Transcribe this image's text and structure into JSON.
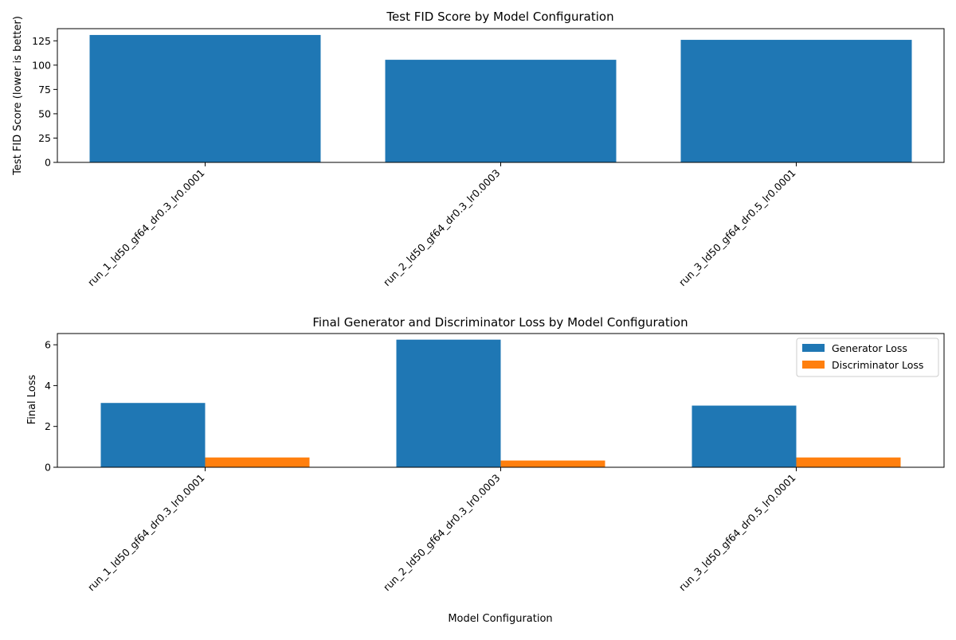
{
  "chart_data": [
    {
      "type": "bar",
      "title": "Test FID Score by Model Configuration",
      "xlabel": "",
      "ylabel": "Test FID Score (lower is better)",
      "categories": [
        "run_1_ld50_gf64_dr0.3_lr0.0001",
        "run_2_ld50_gf64_dr0.3_lr0.0003",
        "run_3_ld50_gf64_dr0.5_lr0.0001"
      ],
      "series": [
        {
          "values": [
            131.0,
            105.5,
            126.0
          ],
          "color": "#1f77b4"
        }
      ],
      "ylim": [
        0,
        137.5
      ],
      "yticks": [
        "0",
        "25",
        "50",
        "75",
        "100",
        "125"
      ],
      "grid": false
    },
    {
      "type": "bar",
      "title": "Final Generator and Discriminator Loss by Model Configuration",
      "xlabel": "Model Configuration",
      "ylabel": "Final Loss",
      "categories": [
        "run_1_ld50_gf64_dr0.3_lr0.0001",
        "run_2_ld50_gf64_dr0.3_lr0.0003",
        "run_3_ld50_gf64_dr0.5_lr0.0001"
      ],
      "series": [
        {
          "name": "Generator Loss",
          "values": [
            3.15,
            6.25,
            3.02
          ],
          "color": "#1f77b4"
        },
        {
          "name": "Discriminator Loss",
          "values": [
            0.48,
            0.33,
            0.48
          ],
          "color": "#ff7f0e"
        }
      ],
      "ylim": [
        0,
        6.55
      ],
      "yticks": [
        "0",
        "2",
        "4",
        "6"
      ],
      "legend_position": "top-right",
      "grid": false
    }
  ]
}
